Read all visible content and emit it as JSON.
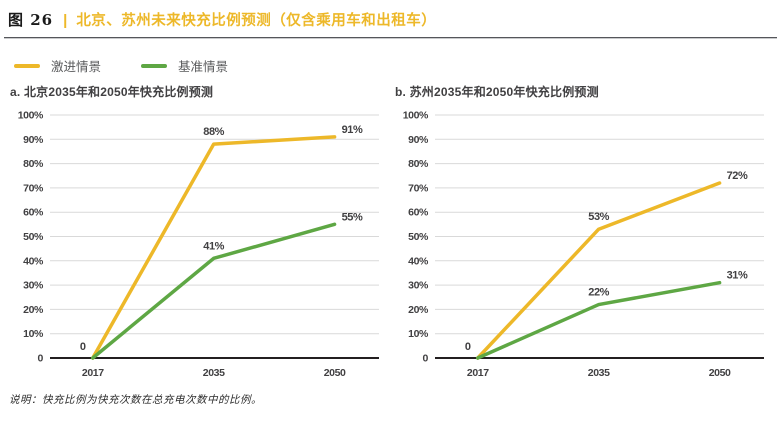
{
  "figure": {
    "label": "图 26",
    "separator": "|",
    "title": "北京、苏州未来快充比例预测（仅含乘用车和出租车）"
  },
  "colors": {
    "accent_yellow": "#EDB829",
    "accent_green": "#5EA744",
    "text_dark": "#414042",
    "grid_line": "#D9D9D9",
    "axis_line": "#231F20"
  },
  "legend": {
    "items": [
      {
        "label": "激进情景",
        "color": "#EDB829"
      },
      {
        "label": "基准情景",
        "color": "#5EA744"
      }
    ]
  },
  "chart_data": [
    {
      "type": "line",
      "title": "a. 北京2035年和2050年快充比例预测",
      "categories": [
        "2017",
        "2035",
        "2050"
      ],
      "series": [
        {
          "name": "激进情景",
          "color": "#EDB829",
          "values": [
            0,
            88,
            91
          ],
          "point_labels": [
            "0",
            "88%",
            "91%"
          ]
        },
        {
          "name": "基准情景",
          "color": "#5EA744",
          "values": [
            0,
            41,
            55
          ],
          "point_labels": [
            null,
            "41%",
            "55%"
          ]
        }
      ],
      "ylim": [
        0,
        100
      ],
      "ytick_labels": [
        "100%",
        "90%",
        "80%",
        "70%",
        "60%",
        "50%",
        "40%",
        "30%",
        "20%",
        "10%",
        "0"
      ],
      "grid": true,
      "legend_position": "shared-top-left"
    },
    {
      "type": "line",
      "title": "b. 苏州2035年和2050年快充比例预测",
      "categories": [
        "2017",
        "2035",
        "2050"
      ],
      "series": [
        {
          "name": "激进情景",
          "color": "#EDB829",
          "values": [
            0,
            53,
            72
          ],
          "point_labels": [
            "0",
            "53%",
            "72%"
          ]
        },
        {
          "name": "基准情景",
          "color": "#5EA744",
          "values": [
            0,
            22,
            31
          ],
          "point_labels": [
            null,
            "22%",
            "31%"
          ]
        }
      ],
      "ylim": [
        0,
        100
      ],
      "ytick_labels": [
        "100%",
        "90%",
        "80%",
        "70%",
        "60%",
        "50%",
        "40%",
        "30%",
        "20%",
        "10%",
        "0"
      ],
      "grid": true,
      "legend_position": "shared-top-left"
    }
  ],
  "footnote": "说明：快充比例为快充次数在总充电次数中的比例。"
}
